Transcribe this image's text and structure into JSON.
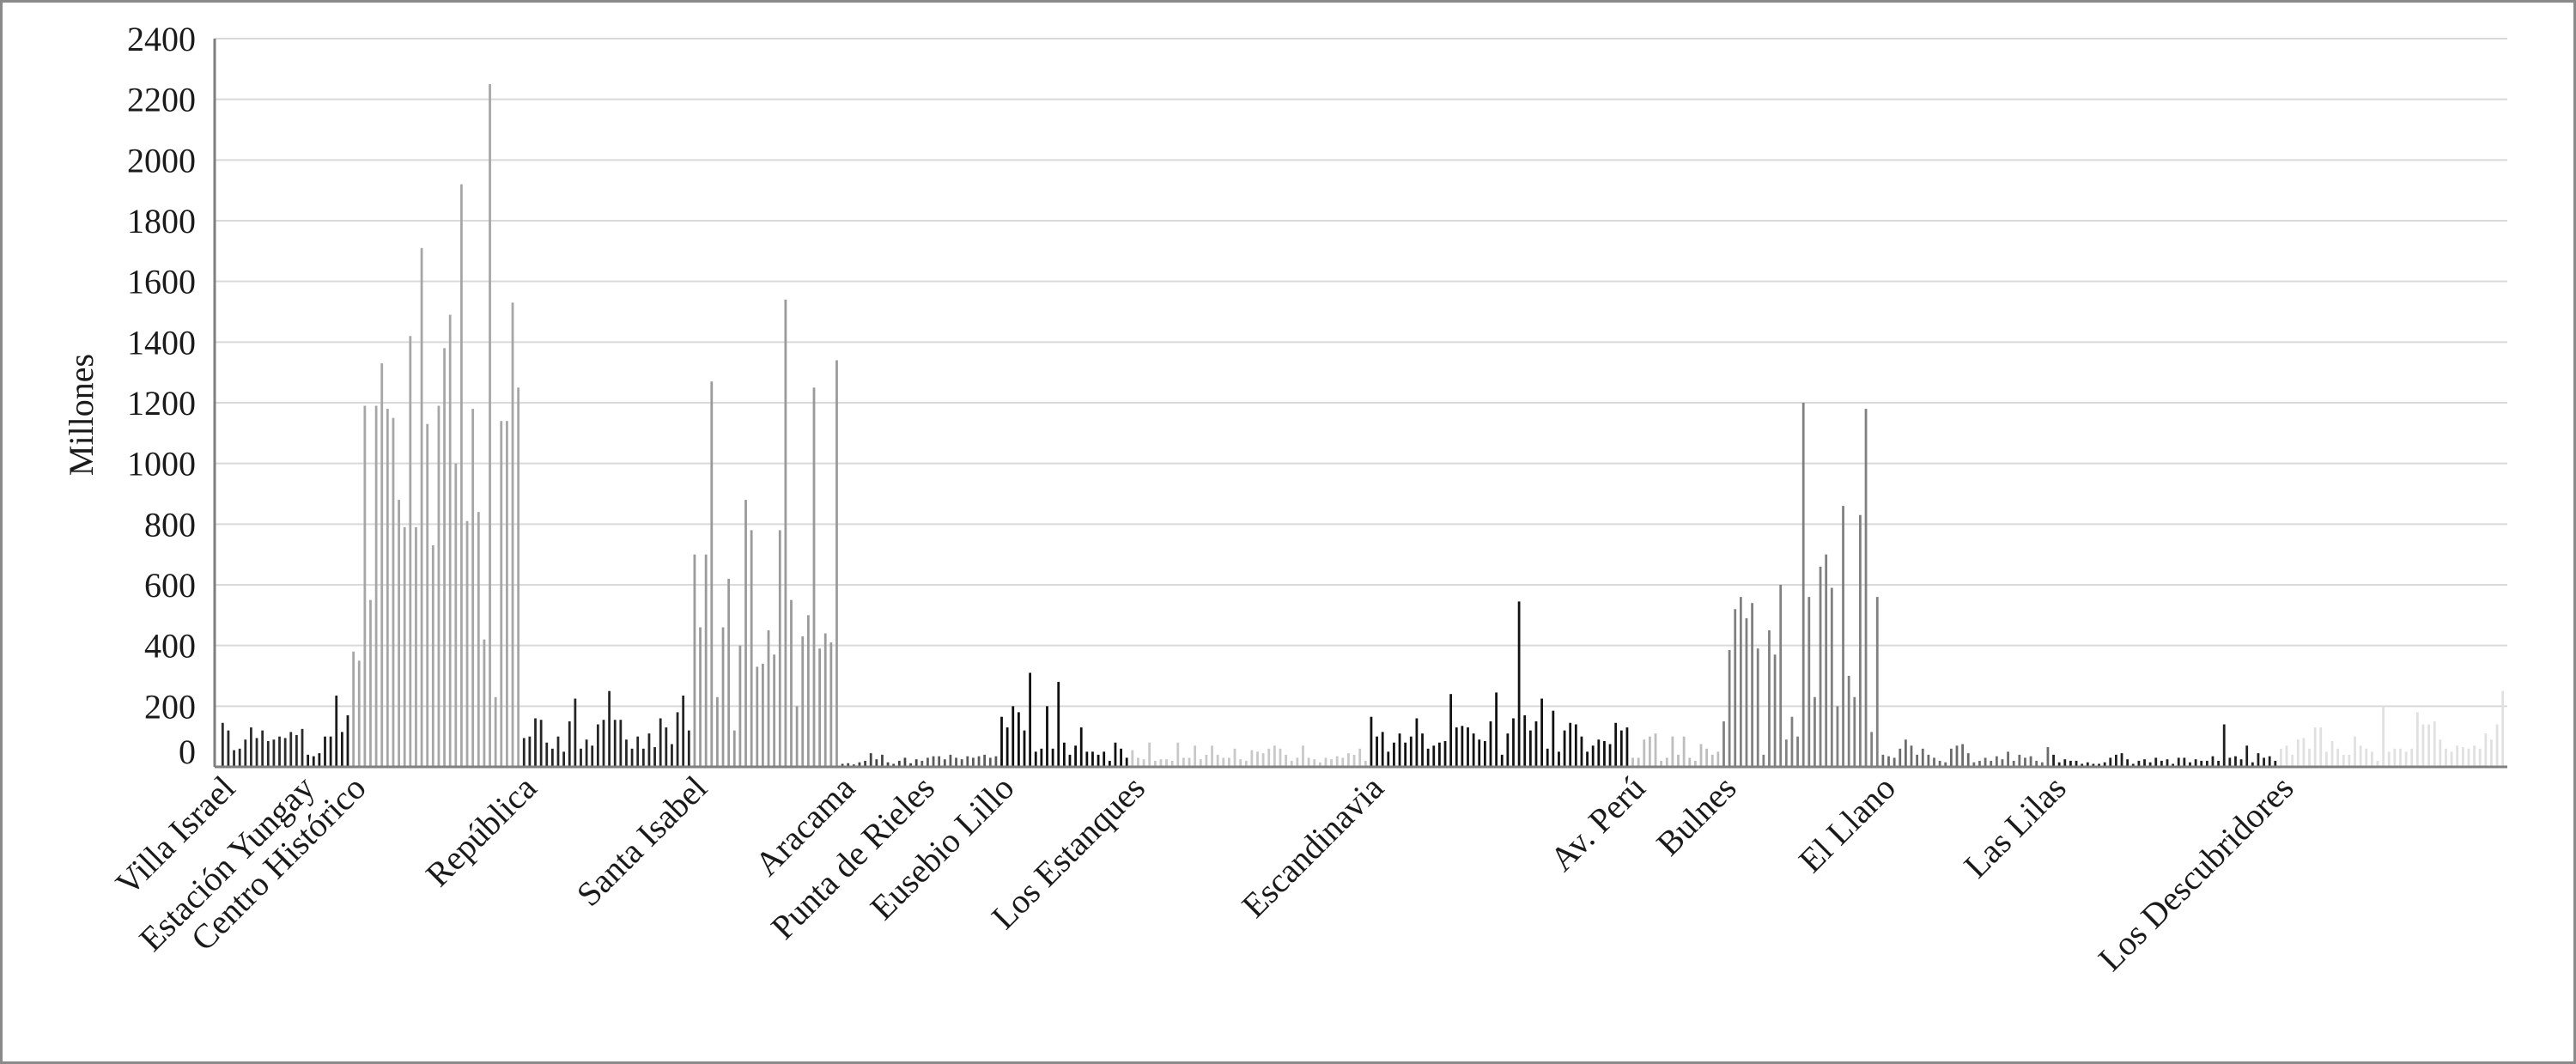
{
  "chart_data": {
    "type": "bar",
    "ylabel": "Millones",
    "ylim": [
      0,
      2400
    ],
    "yticks": [
      0,
      200,
      400,
      600,
      800,
      1000,
      1200,
      1400,
      1600,
      1800,
      2000,
      2200,
      2400
    ],
    "grid": true,
    "series": [
      {
        "name": "Villa Israel",
        "color": "#2b2b2b",
        "values": [
          145,
          120,
          55,
          60,
          90,
          130,
          95,
          120,
          85,
          90,
          100,
          95,
          115,
          105,
          125
        ]
      },
      {
        "name": "Estación Yungay",
        "color": "#1a1a1a",
        "values": [
          40,
          35,
          45,
          100,
          100,
          235,
          115,
          170
        ]
      },
      {
        "name": "Centro Histórico",
        "color": "#a6a6a6",
        "values": [
          380,
          350,
          1190,
          550,
          1190,
          1330,
          1180,
          1150,
          880,
          790,
          1420,
          790,
          1710,
          1130,
          730,
          1190,
          1380,
          1490,
          1000,
          1920,
          810,
          1180,
          840,
          420,
          2250,
          230,
          1140,
          1140,
          1530,
          1250
        ]
      },
      {
        "name": "República",
        "color": "#262626",
        "values": [
          95,
          100,
          160,
          155,
          80,
          60,
          100,
          50,
          150,
          225,
          60,
          90,
          70,
          140,
          155,
          250,
          155,
          155,
          90,
          60,
          100,
          60,
          110,
          65,
          160,
          130,
          75,
          180,
          235,
          120
        ]
      },
      {
        "name": "Santa Isabel",
        "color": "#9a9a9a",
        "values": [
          700,
          460,
          700,
          1270,
          230,
          460,
          620,
          120,
          400,
          880,
          780,
          330,
          340,
          450,
          370,
          780,
          1540,
          550,
          200,
          430,
          500,
          1250,
          390,
          440,
          410,
          1340
        ]
      },
      {
        "name": "Aracama",
        "color": "#444444",
        "values": [
          10,
          12,
          8,
          15,
          20,
          45,
          25,
          40,
          15,
          10,
          20,
          30,
          12,
          25
        ]
      },
      {
        "name": "Punta de Rieles",
        "color": "#5a5a5a",
        "values": [
          20,
          30,
          35,
          35,
          25,
          40,
          30,
          25,
          35,
          30,
          35,
          40,
          30,
          35
        ]
      },
      {
        "name": "Eusebio Lillo",
        "color": "#0d0d0d",
        "values": [
          165,
          130,
          200,
          180,
          120,
          310,
          50,
          60,
          200,
          60,
          280,
          80,
          40,
          70,
          130,
          50,
          50,
          40,
          50,
          20,
          80,
          60,
          30
        ]
      },
      {
        "name": "Los Estanques",
        "color": "#c8c8c8",
        "values": [
          55,
          30,
          25,
          80,
          20,
          25,
          25,
          20,
          80,
          30,
          30,
          70,
          25,
          40,
          70,
          40,
          30,
          30,
          60,
          25,
          20,
          55,
          50,
          45,
          60,
          70,
          60,
          40,
          20,
          30,
          70,
          30,
          25,
          15,
          30,
          25,
          35,
          30,
          45,
          40,
          60,
          20
        ]
      },
      {
        "name": "Escandinavia",
        "color": "#111111",
        "values": [
          165,
          100,
          115,
          50,
          80,
          110,
          80,
          100,
          160,
          110,
          60,
          70,
          80,
          85,
          240,
          130,
          135,
          130,
          110,
          90,
          85,
          150,
          245,
          40,
          110,
          160,
          545,
          170,
          120,
          150,
          225,
          60,
          185,
          50,
          120,
          145,
          140,
          100,
          50,
          70,
          90,
          85,
          75,
          145,
          120,
          130
        ]
      },
      {
        "name": "Av. Perú",
        "color": "#bdbdbd",
        "values": [
          30,
          30,
          90,
          100,
          110,
          20,
          30,
          100,
          40,
          100,
          30,
          20,
          75,
          60,
          40,
          50
        ]
      },
      {
        "name": "Bulnes",
        "color": "#808080",
        "values": [
          150,
          385,
          520,
          560,
          490,
          540,
          390,
          40,
          450,
          370,
          600,
          90,
          165,
          100,
          1200,
          560,
          230,
          660,
          700,
          590,
          200,
          860,
          300,
          230,
          830,
          1180,
          115,
          560
        ]
      },
      {
        "name": "El Llano",
        "color": "#6b6b6b",
        "values": [
          40,
          35,
          30,
          60,
          90,
          70,
          40,
          60,
          40,
          30,
          20,
          15,
          60,
          70,
          75,
          45,
          15,
          20,
          30,
          20,
          35,
          25,
          50,
          20,
          40,
          30,
          35,
          20,
          15,
          65
        ]
      },
      {
        "name": "Las Lilas",
        "color": "#1f1f1f",
        "values": [
          40,
          15,
          25,
          20,
          20,
          10,
          15,
          10,
          10,
          15,
          30,
          40,
          45,
          25,
          10,
          20,
          25,
          15,
          30,
          20,
          25,
          10,
          30,
          30,
          15,
          25,
          20,
          20,
          35,
          20,
          140,
          30,
          35,
          25,
          70,
          15,
          45,
          30,
          35,
          20
        ]
      },
      {
        "name": "Los Descubridores",
        "color": "#e0e0e0",
        "values": [
          60,
          70,
          40,
          90,
          95,
          60,
          130,
          130,
          50,
          85,
          60,
          40,
          40,
          100,
          70,
          60,
          50,
          20,
          200,
          50,
          60,
          60,
          50,
          60,
          180,
          140,
          140,
          150,
          90,
          60,
          50,
          70,
          65,
          60,
          70,
          60,
          110,
          90,
          140,
          250
        ]
      }
    ]
  }
}
